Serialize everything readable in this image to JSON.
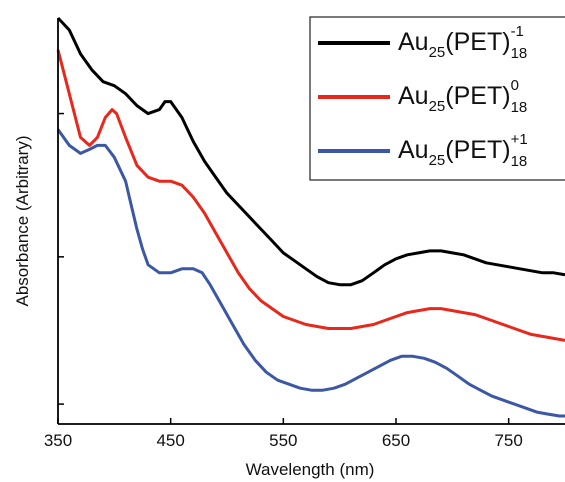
{
  "chart_data": {
    "type": "line",
    "title": "",
    "xlabel": "Wavelength (nm)",
    "ylabel": "Absorbance (Arbitrary)",
    "xlim": [
      350,
      800
    ],
    "ylim": [
      0,
      1
    ],
    "x_ticks": [
      350,
      450,
      550,
      650,
      750
    ],
    "y_ticks_labeled": false,
    "y_ticks": [
      0.05,
      0.42,
      0.78
    ],
    "grid": false,
    "legend_position": "top-right",
    "series": [
      {
        "name": "Au25(PET)18 -1",
        "legend_main": "Au",
        "legend_sub1": "25",
        "legend_mid": "(PET)",
        "legend_sup": "-1",
        "legend_sub2": "18",
        "color": "#000000",
        "points": [
          [
            350,
            1.1
          ],
          [
            360,
            0.99
          ],
          [
            370,
            0.93
          ],
          [
            380,
            0.89
          ],
          [
            390,
            0.86
          ],
          [
            400,
            0.85
          ],
          [
            410,
            0.83
          ],
          [
            420,
            0.8
          ],
          [
            430,
            0.78
          ],
          [
            440,
            0.79
          ],
          [
            445,
            0.81
          ],
          [
            450,
            0.81
          ],
          [
            460,
            0.77
          ],
          [
            470,
            0.71
          ],
          [
            480,
            0.66
          ],
          [
            490,
            0.62
          ],
          [
            500,
            0.58
          ],
          [
            510,
            0.55
          ],
          [
            520,
            0.52
          ],
          [
            530,
            0.49
          ],
          [
            540,
            0.46
          ],
          [
            550,
            0.43
          ],
          [
            560,
            0.41
          ],
          [
            570,
            0.39
          ],
          [
            580,
            0.37
          ],
          [
            590,
            0.355
          ],
          [
            600,
            0.35
          ],
          [
            610,
            0.35
          ],
          [
            620,
            0.36
          ],
          [
            630,
            0.38
          ],
          [
            640,
            0.4
          ],
          [
            650,
            0.415
          ],
          [
            660,
            0.425
          ],
          [
            670,
            0.43
          ],
          [
            680,
            0.435
          ],
          [
            690,
            0.435
          ],
          [
            700,
            0.43
          ],
          [
            710,
            0.425
          ],
          [
            720,
            0.415
          ],
          [
            730,
            0.405
          ],
          [
            740,
            0.4
          ],
          [
            750,
            0.395
          ],
          [
            760,
            0.39
          ],
          [
            770,
            0.385
          ],
          [
            780,
            0.38
          ],
          [
            790,
            0.38
          ],
          [
            800,
            0.375
          ]
        ]
      },
      {
        "name": "Au25(PET)18 0",
        "legend_main": "Au",
        "legend_sub1": "25",
        "legend_mid": "(PET)",
        "legend_sup": "0",
        "legend_sub2": "18",
        "color": "#e8281c",
        "points": [
          [
            350,
            0.94
          ],
          [
            360,
            0.83
          ],
          [
            370,
            0.72
          ],
          [
            378,
            0.7
          ],
          [
            385,
            0.72
          ],
          [
            392,
            0.77
          ],
          [
            398,
            0.79
          ],
          [
            402,
            0.78
          ],
          [
            410,
            0.72
          ],
          [
            420,
            0.65
          ],
          [
            430,
            0.62
          ],
          [
            440,
            0.61
          ],
          [
            450,
            0.61
          ],
          [
            460,
            0.6
          ],
          [
            470,
            0.57
          ],
          [
            480,
            0.53
          ],
          [
            490,
            0.48
          ],
          [
            500,
            0.43
          ],
          [
            510,
            0.38
          ],
          [
            520,
            0.34
          ],
          [
            530,
            0.31
          ],
          [
            540,
            0.29
          ],
          [
            550,
            0.27
          ],
          [
            560,
            0.26
          ],
          [
            570,
            0.25
          ],
          [
            580,
            0.245
          ],
          [
            590,
            0.24
          ],
          [
            600,
            0.24
          ],
          [
            610,
            0.24
          ],
          [
            620,
            0.245
          ],
          [
            630,
            0.25
          ],
          [
            640,
            0.26
          ],
          [
            650,
            0.27
          ],
          [
            660,
            0.28
          ],
          [
            670,
            0.285
          ],
          [
            680,
            0.29
          ],
          [
            690,
            0.29
          ],
          [
            700,
            0.285
          ],
          [
            710,
            0.28
          ],
          [
            720,
            0.275
          ],
          [
            730,
            0.265
          ],
          [
            740,
            0.255
          ],
          [
            750,
            0.245
          ],
          [
            760,
            0.235
          ],
          [
            770,
            0.225
          ],
          [
            780,
            0.22
          ],
          [
            790,
            0.215
          ],
          [
            800,
            0.21
          ]
        ]
      },
      {
        "name": "Au25(PET)18 +1",
        "legend_main": "Au",
        "legend_sub1": "25",
        "legend_mid": "(PET)",
        "legend_sup": "+1",
        "legend_sub2": "18",
        "color": "#3b57a6",
        "points": [
          [
            350,
            0.74
          ],
          [
            360,
            0.7
          ],
          [
            370,
            0.68
          ],
          [
            378,
            0.69
          ],
          [
            385,
            0.7
          ],
          [
            392,
            0.7
          ],
          [
            400,
            0.67
          ],
          [
            410,
            0.61
          ],
          [
            415,
            0.55
          ],
          [
            420,
            0.49
          ],
          [
            425,
            0.44
          ],
          [
            430,
            0.4
          ],
          [
            440,
            0.38
          ],
          [
            450,
            0.38
          ],
          [
            460,
            0.39
          ],
          [
            470,
            0.39
          ],
          [
            478,
            0.38
          ],
          [
            485,
            0.35
          ],
          [
            495,
            0.3
          ],
          [
            505,
            0.25
          ],
          [
            515,
            0.2
          ],
          [
            525,
            0.16
          ],
          [
            535,
            0.13
          ],
          [
            545,
            0.11
          ],
          [
            555,
            0.1
          ],
          [
            565,
            0.09
          ],
          [
            575,
            0.085
          ],
          [
            585,
            0.085
          ],
          [
            595,
            0.09
          ],
          [
            605,
            0.1
          ],
          [
            615,
            0.115
          ],
          [
            625,
            0.13
          ],
          [
            635,
            0.145
          ],
          [
            645,
            0.16
          ],
          [
            655,
            0.17
          ],
          [
            665,
            0.17
          ],
          [
            675,
            0.165
          ],
          [
            685,
            0.155
          ],
          [
            695,
            0.14
          ],
          [
            705,
            0.12
          ],
          [
            715,
            0.1
          ],
          [
            725,
            0.085
          ],
          [
            735,
            0.07
          ],
          [
            745,
            0.06
          ],
          [
            755,
            0.05
          ],
          [
            765,
            0.04
          ],
          [
            775,
            0.03
          ],
          [
            785,
            0.025
          ],
          [
            795,
            0.02
          ],
          [
            800,
            0.02
          ]
        ]
      }
    ]
  }
}
